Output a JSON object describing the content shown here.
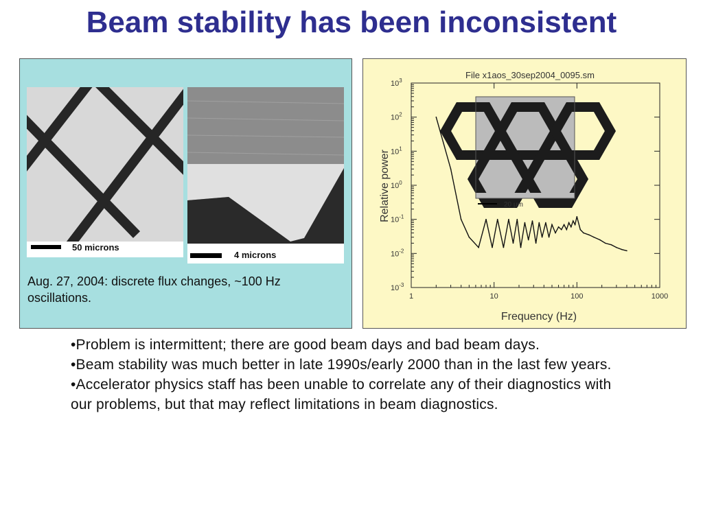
{
  "slide": {
    "title": "Beam stability has been inconsistent"
  },
  "left_panel": {
    "image1_scale_label": "50 microns",
    "image2_scale_label": "4 microns",
    "caption": "Aug. 27, 2004: discrete flux changes, ~100 Hz oscillations."
  },
  "chart_data": {
    "type": "line",
    "title": "File x1aos_30sep2004_0095.sm",
    "xlabel": "Frequency (Hz)",
    "ylabel": "Relative power",
    "x_scale": "log",
    "y_scale": "log",
    "xlim": [
      1,
      1000
    ],
    "ylim": [
      0.001,
      1000
    ],
    "x_ticks": [
      "1",
      "10",
      "100",
      "1000"
    ],
    "y_ticks": [
      "10-3",
      "10-2",
      "10-1",
      "100",
      "101",
      "102",
      "103"
    ],
    "inset_scale_label": "20 μm",
    "series": [
      {
        "x": [
          2,
          3,
          4,
          5,
          6.5,
          8,
          9.5,
          11,
          13,
          15,
          17,
          19,
          21,
          23.5,
          26,
          29,
          32,
          35,
          38,
          42,
          46,
          50,
          55,
          60,
          65,
          70,
          75,
          80,
          85,
          90,
          95,
          100,
          110,
          120,
          140,
          160,
          190,
          220,
          260,
          300,
          350,
          400
        ],
        "y": [
          100,
          3,
          0.1,
          0.03,
          0.015,
          0.1,
          0.015,
          0.1,
          0.015,
          0.1,
          0.02,
          0.1,
          0.015,
          0.08,
          0.025,
          0.09,
          0.02,
          0.08,
          0.03,
          0.08,
          0.03,
          0.07,
          0.04,
          0.06,
          0.05,
          0.07,
          0.05,
          0.08,
          0.06,
          0.09,
          0.07,
          0.12,
          0.05,
          0.04,
          0.035,
          0.03,
          0.025,
          0.02,
          0.018,
          0.015,
          0.013,
          0.012
        ]
      }
    ]
  },
  "bullets": [
    "•Problem is intermittent; there are good beam days and bad beam days.",
    "•Beam stability was much better in late 1990s/early 2000 than in the last few years.",
    "•Accelerator physics staff has been unable to correlate any of their diagnostics with our problems, but that may reflect limitations in beam diagnostics."
  ]
}
